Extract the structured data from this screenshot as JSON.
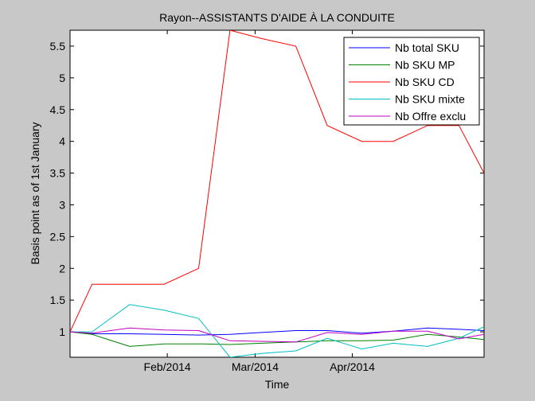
{
  "chart_data": {
    "type": "line",
    "title": "Rayon--ASSISTANTS D'AIDE À LA CONDUITE",
    "xlabel": "Time",
    "ylabel": "Basis point as of 1st January",
    "x": [
      "2014-01-01",
      "2014-01-08",
      "2014-01-20",
      "2014-01-31",
      "2014-02-11",
      "2014-02-21",
      "2014-03-03",
      "2014-03-14",
      "2014-03-24",
      "2014-04-04",
      "2014-04-14",
      "2014-04-25",
      "2014-05-05",
      "2014-05-13"
    ],
    "xlim": [
      "2014-01-01",
      "2014-05-13"
    ],
    "xticks": [
      {
        "date": "2014-02-01",
        "label": "Feb/2014"
      },
      {
        "date": "2014-03-01",
        "label": "Mar/2014"
      },
      {
        "date": "2014-04-01",
        "label": "Apr/2014"
      }
    ],
    "ylim": [
      0.6,
      5.75
    ],
    "yticks": [
      1,
      1.5,
      2,
      2.5,
      3,
      3.5,
      4,
      4.5,
      5,
      5.5
    ],
    "ytick_labels": [
      "1",
      "1.5",
      "2",
      "2.5",
      "3",
      "3.5",
      "4",
      "4.5",
      "5",
      "5.5"
    ],
    "grid": false,
    "legend_position": "top-right",
    "series": [
      {
        "name": "Nb total SKU",
        "color": "#0000ff",
        "values": [
          1.0,
          0.97,
          0.97,
          0.96,
          0.95,
          0.96,
          0.99,
          1.02,
          1.02,
          0.98,
          1.01,
          1.06,
          1.04,
          1.02
        ]
      },
      {
        "name": "Nb SKU MP",
        "color": "#008000",
        "values": [
          1.0,
          0.96,
          0.77,
          0.81,
          0.81,
          0.8,
          0.82,
          0.84,
          0.86,
          0.86,
          0.87,
          0.96,
          0.92,
          0.88
        ]
      },
      {
        "name": "Nb SKU CD",
        "color": "#ff0000",
        "values": [
          1.0,
          1.75,
          1.75,
          1.75,
          2.0,
          5.75,
          5.62,
          5.5,
          4.25,
          4.0,
          4.0,
          4.25,
          4.25,
          3.5
        ]
      },
      {
        "name": "Nb SKU mixte",
        "color": "#00bfbf",
        "values": [
          1.0,
          1.0,
          1.43,
          1.34,
          1.21,
          0.6,
          0.66,
          0.7,
          0.9,
          0.73,
          0.82,
          0.77,
          0.9,
          1.08
        ]
      },
      {
        "name": "Nb Offre exclu",
        "color": "#bf00bf",
        "values": [
          1.0,
          0.98,
          1.06,
          1.03,
          1.02,
          0.86,
          0.85,
          0.84,
          0.99,
          0.96,
          1.01,
          1.01,
          0.89,
          0.96
        ]
      }
    ]
  }
}
